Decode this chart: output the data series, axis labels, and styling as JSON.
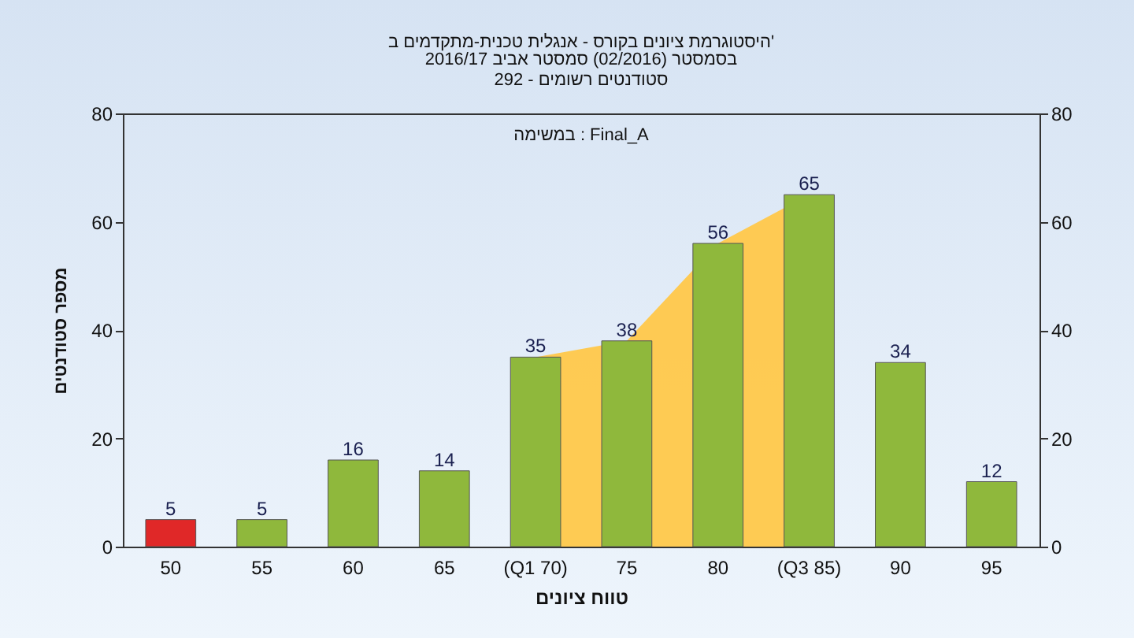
{
  "chart_data": {
    "type": "bar",
    "title": "היסטוגרמת ציונים בקורס - אנגלית טכנית-מתקדמים ב'",
    "subtitle": "בסמסטר (02/2016) סמסטר אביב 2016/17\nסטודנטים רשומים - 292",
    "xlabel": "טווח ציונים",
    "ylabel": "מספר סטודנטים",
    "annotations": [
      "במשימה : Final_A"
    ],
    "categories": [
      "50",
      "55",
      "60",
      "65",
      "(Q1 70)",
      "75",
      "80",
      "(Q3 85)",
      "90",
      "95"
    ],
    "series": [
      {
        "type": "area",
        "color": "#ffc84a",
        "values": [
          null,
          null,
          null,
          null,
          35,
          38,
          56,
          65,
          null,
          null
        ]
      },
      {
        "value_labels": [
          "5",
          "5",
          "16",
          "14",
          "35",
          "38",
          "56",
          "65",
          "34",
          "12"
        ],
        "colors": [
          "#e02828",
          "#8fb83c",
          "#8fb83c",
          "#8fb83c",
          "#8fb83c",
          "#8fb83c",
          "#8fb83c",
          "#8fb83c",
          "#8fb83c",
          "#8fb83c"
        ],
        "values": [
          5,
          5,
          16,
          14,
          35,
          38,
          56,
          65,
          34,
          12
        ]
      }
    ],
    "ylim": [
      0,
      80
    ],
    "yticks": [
      0,
      20,
      40,
      60,
      80
    ],
    "y2lim": [
      0,
      80
    ],
    "y2ticks": [
      0,
      20,
      40,
      60,
      80
    ],
    "grid": false
  }
}
